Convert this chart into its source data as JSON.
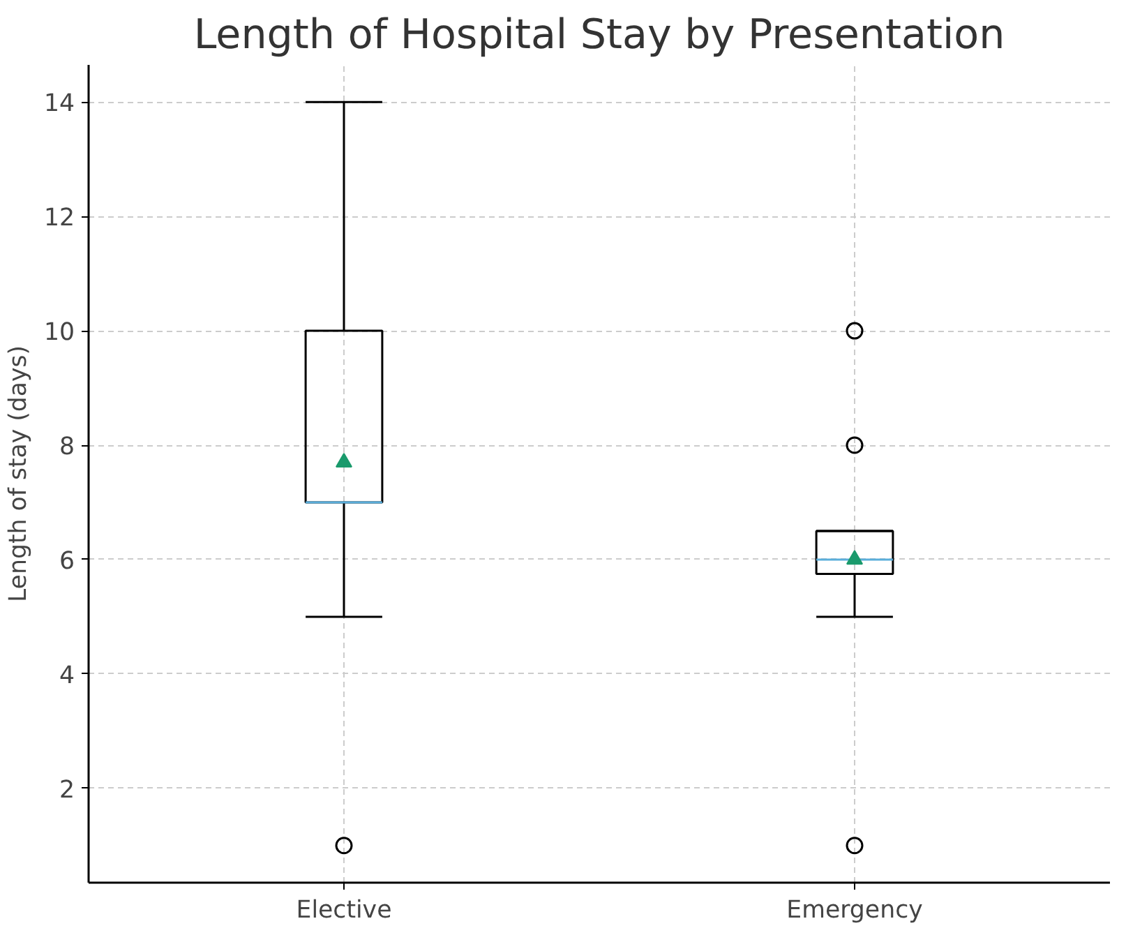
{
  "chart_data": {
    "type": "box",
    "title": "Length of Hospital Stay by Presentation",
    "ylabel": "Length of stay (days)",
    "categories": [
      "Elective",
      "Emergency"
    ],
    "boxes": [
      {
        "low": 5,
        "q1": 7,
        "median": 7,
        "q3": 10,
        "high": 14,
        "mean": 7.7,
        "outliers": [
          1
        ]
      },
      {
        "low": 5,
        "q1": 5.75,
        "median": 6,
        "q3": 6.5,
        "high": 6.5,
        "mean": 6,
        "outliers": [
          1,
          8,
          10
        ]
      }
    ],
    "ylim": [
      0.35,
      14.65
    ],
    "yticks": [
      2,
      4,
      6,
      8,
      10,
      12,
      14
    ],
    "grid": true
  }
}
